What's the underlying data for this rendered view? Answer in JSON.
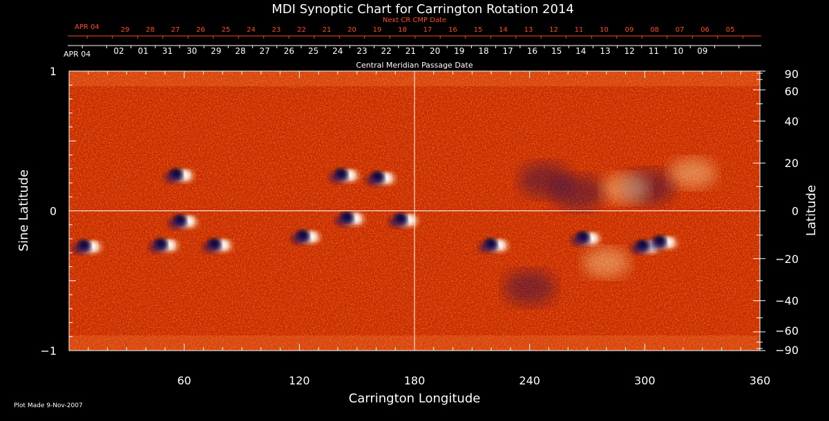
{
  "chart_data": {
    "type": "heatmap",
    "title": "MDI Synoptic Chart for Carrington Rotation 2014",
    "xlabel": "Carrington Longitude",
    "ylabel_left": "Sine Latitude",
    "ylabel_right": "Latitude",
    "xlim": [
      0,
      360
    ],
    "ylim": [
      -1,
      1
    ],
    "x_ticks": [
      60,
      120,
      180,
      240,
      300,
      360
    ],
    "y_ticks_left": [
      -1,
      0,
      1
    ],
    "y_tick_labels_left": [
      "−1",
      "0",
      "1"
    ],
    "y_ticks_right_deg": [
      90,
      60,
      40,
      20,
      0,
      -20,
      -40,
      -60,
      -90
    ],
    "y_tick_labels_right": [
      "90",
      "60",
      "40",
      "20",
      "0",
      "−20",
      "−40",
      "−60",
      "−90"
    ],
    "reference_lines": {
      "longitude": 180,
      "sine_latitude": 0
    },
    "colormap": [
      "#0a0a40",
      "#3a1050",
      "#c02000",
      "#ff4a00",
      "#ff9a30",
      "#ffe080",
      "#ffffff"
    ],
    "bipolar_regions": [
      {
        "lon": 58,
        "sinlat": 0.26
      },
      {
        "lon": 144,
        "sinlat": 0.26
      },
      {
        "lon": 163,
        "sinlat": 0.24
      },
      {
        "lon": 60,
        "sinlat": -0.07
      },
      {
        "lon": 147,
        "sinlat": -0.05
      },
      {
        "lon": 175,
        "sinlat": -0.06
      },
      {
        "lon": 10,
        "sinlat": -0.25
      },
      {
        "lon": 50,
        "sinlat": -0.24
      },
      {
        "lon": 78,
        "sinlat": -0.24
      },
      {
        "lon": 124,
        "sinlat": -0.18
      },
      {
        "lon": 222,
        "sinlat": -0.24
      },
      {
        "lon": 301,
        "sinlat": -0.25
      },
      {
        "lon": 310,
        "sinlat": -0.22
      },
      {
        "lon": 270,
        "sinlat": -0.19
      }
    ],
    "dark_field_clusters": [
      {
        "lon": 248,
        "sinlat": 0.22
      },
      {
        "lon": 265,
        "sinlat": 0.13
      },
      {
        "lon": 302,
        "sinlat": 0.17
      },
      {
        "lon": 240,
        "sinlat": -0.55
      }
    ],
    "bright_field_clusters": [
      {
        "lon": 290,
        "sinlat": 0.16
      },
      {
        "lon": 325,
        "sinlat": 0.27
      },
      {
        "lon": 280,
        "sinlat": -0.37
      }
    ]
  },
  "top_axis_dates": {
    "upper_label": "APR 04",
    "upper_ticks": [
      "29",
      "28",
      "27",
      "26",
      "25",
      "24",
      "23",
      "22",
      "21",
      "20",
      "19",
      "18",
      "17",
      "16",
      "15",
      "14",
      "13",
      "12",
      "11",
      "10",
      "09",
      "08",
      "07",
      "06",
      "05"
    ],
    "upper_caption": "Next CR CMP Date",
    "lower_label": "APR 04",
    "lower_ticks": [
      "02",
      "01",
      "31",
      "30",
      "29",
      "28",
      "27",
      "26",
      "25",
      "24",
      "23",
      "22",
      "21",
      "20",
      "19",
      "18",
      "17",
      "16",
      "15",
      "14",
      "13",
      "12",
      "11",
      "10",
      "09"
    ],
    "lower_caption": "Central Meridian Passage Date"
  },
  "footer": {
    "plot_made": "Plot Made  9-Nov-2007"
  }
}
